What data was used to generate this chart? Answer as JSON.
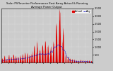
{
  "title": "Solar PV/Inverter Performance East Array Actual & Running Average Power Output",
  "title_fontsize": 2.8,
  "bg_color": "#cccccc",
  "plot_bg_color": "#cccccc",
  "bar_color": "#dd0000",
  "avg_color": "#0000cc",
  "ylim": [
    0,
    3500
  ],
  "yticks": [
    500,
    1000,
    1500,
    2000,
    2500,
    3000,
    3500
  ],
  "ytick_labels": [
    "500",
    "1,000",
    "1,500",
    "2,000",
    "2,500",
    "3,000",
    "3,500"
  ],
  "ylabel_fontsize": 2.5,
  "xlabel_fontsize": 2.3,
  "legend_fontsize": 2.5,
  "grid_color": "#ffffff",
  "n_xticks": 14
}
